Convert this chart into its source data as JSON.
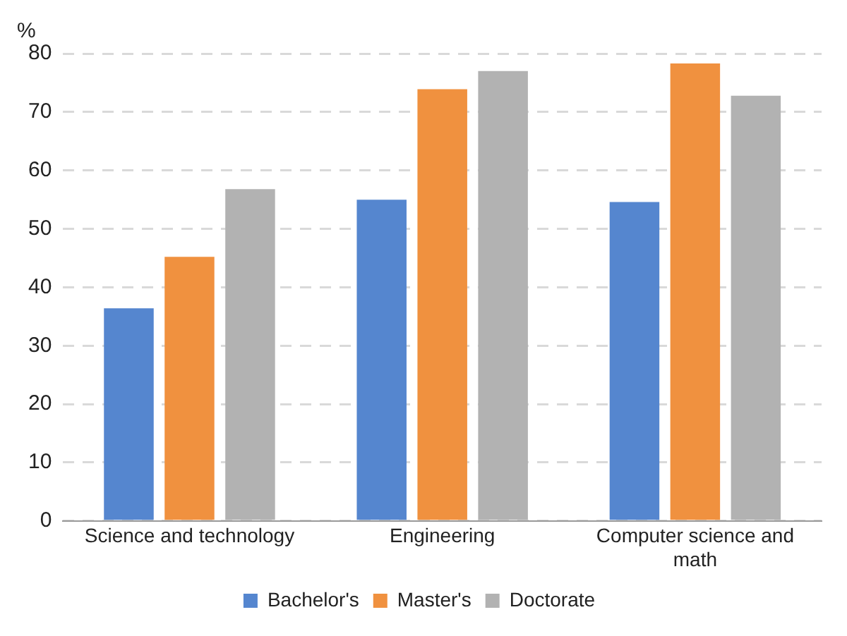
{
  "chart_data": {
    "type": "bar",
    "ylabel": "%",
    "categories": [
      "Science and technology",
      "Engineering",
      "Computer science and math"
    ],
    "series": [
      {
        "name": "Bachelor's",
        "color": "#5586cf",
        "values": [
          36.4,
          55.0,
          54.6
        ]
      },
      {
        "name": "Master's",
        "color": "#f0913f",
        "values": [
          45.2,
          73.9,
          78.3
        ]
      },
      {
        "name": "Doctorate",
        "color": "#b2b2b2",
        "values": [
          56.8,
          77.0,
          72.8
        ]
      }
    ],
    "ylim": [
      0,
      80
    ],
    "yticks": [
      0,
      10,
      20,
      30,
      40,
      50,
      60,
      70,
      80
    ],
    "grid": "y",
    "legend": "bottom"
  }
}
